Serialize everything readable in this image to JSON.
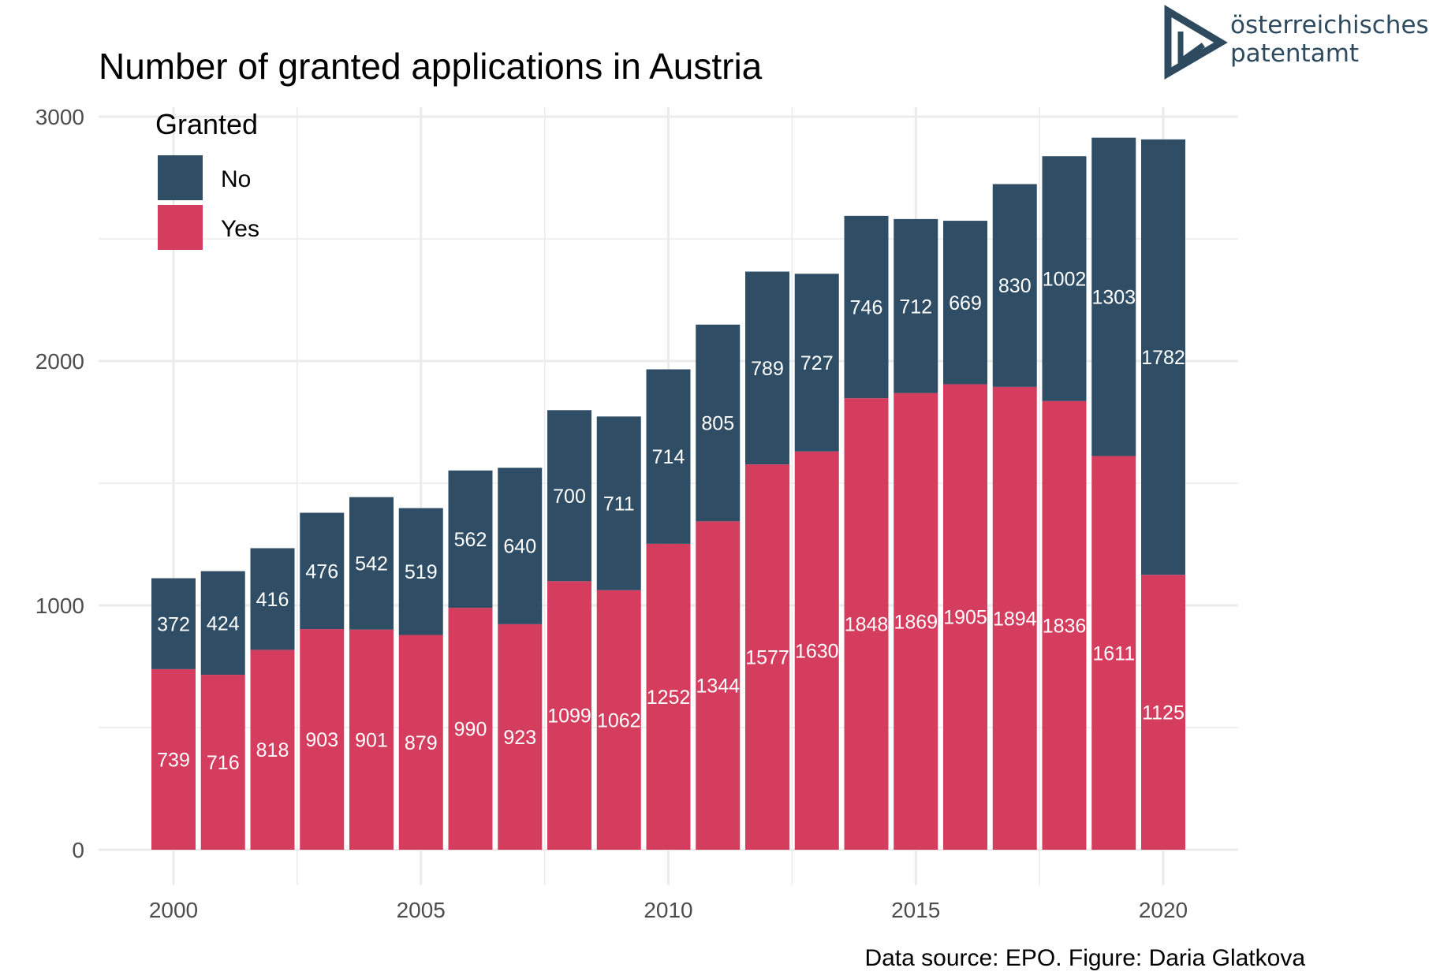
{
  "chart_data": {
    "type": "bar",
    "stacked": true,
    "title": "Number of granted applications in Austria",
    "xlabel": "",
    "ylabel": "",
    "categories": [
      2000,
      2001,
      2002,
      2003,
      2004,
      2005,
      2006,
      2007,
      2008,
      2009,
      2010,
      2011,
      2012,
      2013,
      2014,
      2015,
      2016,
      2017,
      2018,
      2019,
      2020
    ],
    "series": [
      {
        "name": "Yes",
        "color": "#d43d5e",
        "values": [
          739,
          716,
          818,
          903,
          901,
          879,
          990,
          923,
          1099,
          1062,
          1252,
          1344,
          1577,
          1630,
          1848,
          1869,
          1905,
          1894,
          1836,
          1611,
          1125
        ]
      },
      {
        "name": "No",
        "color": "#2f4e66",
        "values": [
          372,
          424,
          416,
          476,
          542,
          519,
          562,
          640,
          700,
          711,
          714,
          805,
          789,
          727,
          746,
          712,
          669,
          830,
          1002,
          1303,
          1782
        ]
      }
    ],
    "x_ticks": [
      "2000",
      "2005",
      "2010",
      "2015",
      "2020"
    ],
    "y_ticks": [
      "0",
      "1000",
      "2000",
      "3000"
    ],
    "ylim": [
      0,
      3000
    ],
    "grid": true,
    "legend": {
      "title": "Granted",
      "position": "top-left",
      "items": [
        {
          "label": "No",
          "color": "#2f4e66"
        },
        {
          "label": "Yes",
          "color": "#d43d5e"
        }
      ]
    },
    "caption": "Data source: EPO. Figure: Daria Glatkova"
  },
  "logo": {
    "line1": "österreichisches",
    "line2": "patentamt",
    "color": "#2e4a5f"
  }
}
